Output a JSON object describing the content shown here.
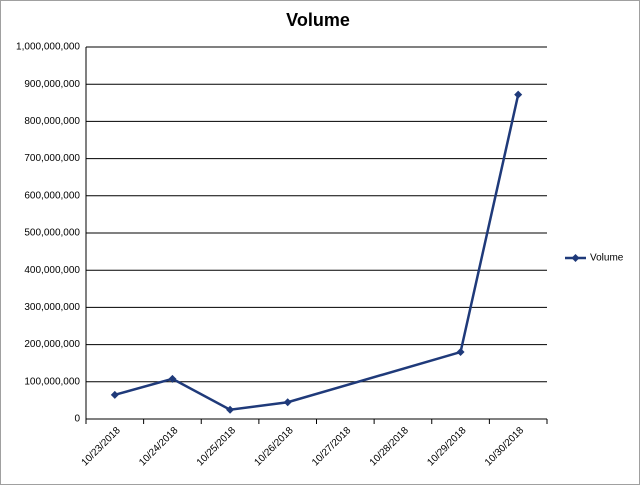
{
  "chart_data": {
    "type": "line",
    "title": "Volume",
    "x": [
      "10/23/2018",
      "10/24/2018",
      "10/25/2018",
      "10/26/2018",
      "10/29/2018",
      "10/30/2018"
    ],
    "xticks": [
      "10/23/2018",
      "10/24/2018",
      "10/25/2018",
      "10/26/2018",
      "10/27/2018",
      "10/28/2018",
      "10/29/2018",
      "10/30/2018"
    ],
    "series": [
      {
        "name": "Volume",
        "color": "#1f3a7a",
        "values": [
          65000000,
          108000000,
          25000000,
          45000000,
          180000000,
          872000000
        ]
      }
    ],
    "ylim": [
      0,
      1000000000
    ],
    "yticks": [
      0,
      {
        "value": 100000000,
        "label": "100,000,000"
      },
      {
        "value": 200000000,
        "label": "200,000,000"
      },
      {
        "value": 300000000,
        "label": "300,000,000"
      },
      {
        "value": 400000000,
        "label": "400,000,000"
      },
      {
        "value": 500000000,
        "label": "500,000,000"
      },
      {
        "value": 600000000,
        "label": "600,000,000"
      },
      {
        "value": 700000000,
        "label": "700,000,000"
      },
      {
        "value": 800000000,
        "label": "800,000,000"
      },
      {
        "value": 900000000,
        "label": "900,000,000"
      },
      {
        "value": 1000000000,
        "label": "1,000,000,000"
      }
    ],
    "grid": true,
    "legend": "right"
  }
}
